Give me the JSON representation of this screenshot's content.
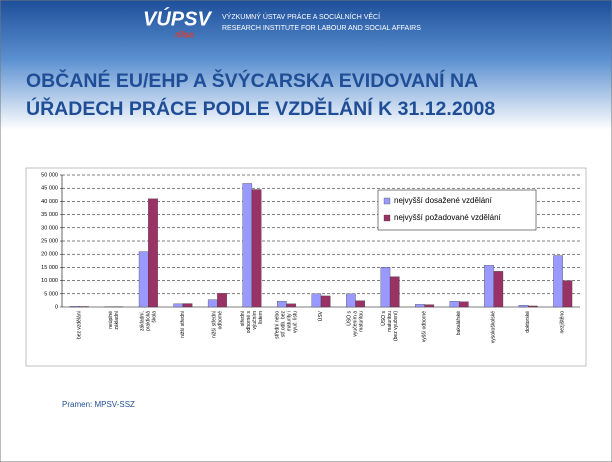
{
  "slide": {
    "logo": "VÚPSV",
    "logo_sub": "rilsa",
    "institute_cz": "VÝZKUMNÝ ÚSTAV PRÁCE A SOCIÁLNÍCH VĚCÍ",
    "institute_en": "RESEARCH INSTITUTE FOR LABOUR AND SOCIAL AFFAIRS",
    "title_lines": [
      "OBČANÉ EU/EHP A ŠVÝCARSKA EVIDOVANÍ NA",
      "ÚŘADECH PRÁCE PODLE VZDĚLÁNÍ K 31.12.2008"
    ],
    "source": "Pramen: MPSV-SSZ"
  },
  "chart_data": {
    "type": "bar",
    "categories": [
      "bez vzdělání",
      "neúplné základní",
      "základní, praktická škola",
      "nižší střední",
      "nižší střední odborné",
      "střední odborné s výučním listem",
      "střední nebo stř.odb. bez maturity i vyuč. listu",
      "ÚSV",
      "ÚSO s vyučením a maturitou",
      "ÚSO s maturitou (bez vyučení)",
      "vyšší odborné",
      "bakalářské",
      "vysokoškolské",
      "doktorské",
      "nezjištěno"
    ],
    "series": [
      {
        "name": "nejvyšší dosažené vzdělání",
        "color": "#9999ff",
        "values": [
          300,
          100,
          21000,
          1200,
          2800,
          46800,
          2200,
          5000,
          5000,
          15000,
          1000,
          2200,
          15800,
          700,
          19500
        ]
      },
      {
        "name": "nejvyšší požadované vzdělání",
        "color": "#993366",
        "values": [
          200,
          100,
          41000,
          1300,
          5200,
          44500,
          1200,
          4200,
          2400,
          11500,
          900,
          2000,
          13500,
          400,
          10000
        ]
      }
    ],
    "ylim": [
      0,
      50000
    ],
    "yticks": [
      0,
      {
        "value": 5000,
        "label": "5 000"
      },
      {
        "value": 10000,
        "label": "10 000"
      },
      {
        "value": 15000,
        "label": "15 000"
      },
      {
        "value": 20000,
        "label": "20 000"
      },
      {
        "value": 25000,
        "label": "25 000"
      },
      {
        "value": 30000,
        "label": "30 000"
      },
      {
        "value": 35000,
        "label": "35 000"
      },
      {
        "value": 40000,
        "label": "40 000"
      },
      {
        "value": 45000,
        "label": "45 000"
      },
      {
        "value": 50000,
        "label": "50 000"
      }
    ],
    "grid": true,
    "legend": "upper right"
  }
}
